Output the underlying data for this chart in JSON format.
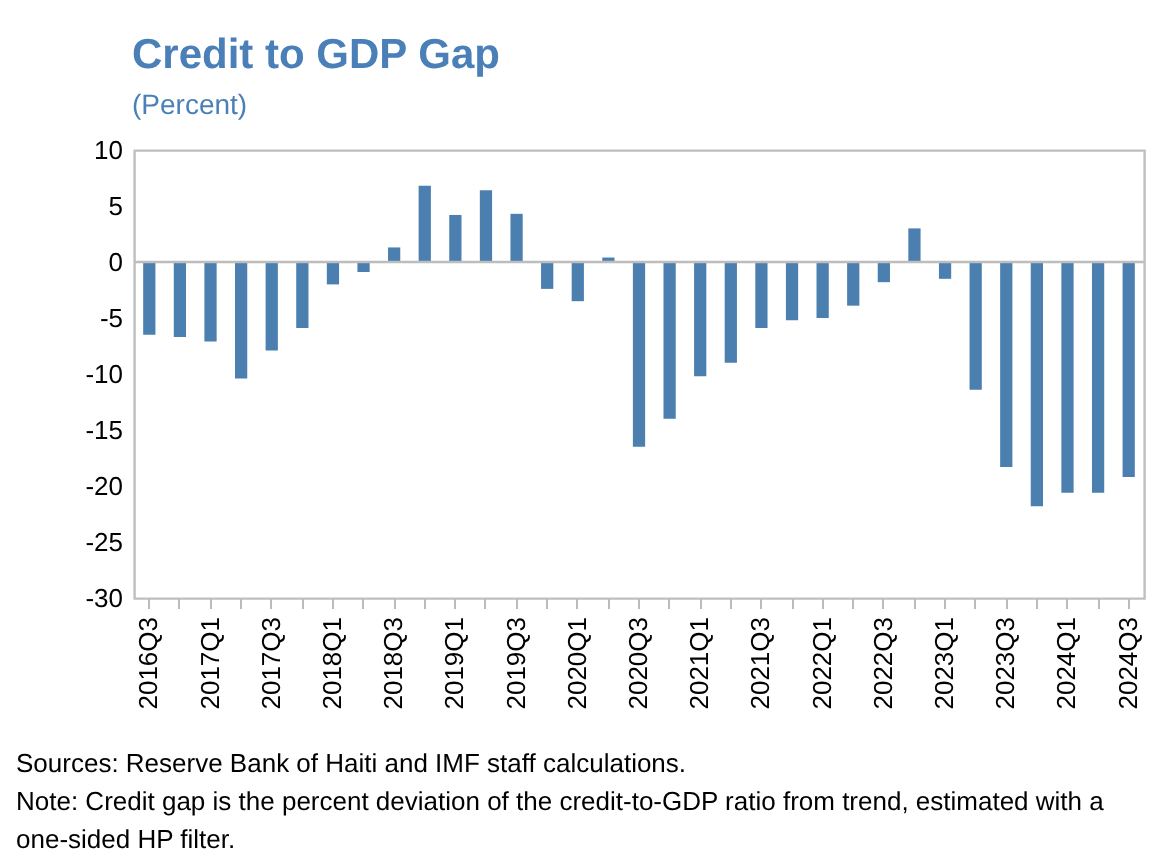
{
  "chart_data": {
    "type": "bar",
    "title": "Credit to GDP Gap",
    "subtitle": "(Percent)",
    "categories": [
      "2016Q3",
      null,
      "2017Q1",
      null,
      "2017Q3",
      null,
      "2018Q1",
      null,
      "2018Q3",
      null,
      "2019Q1",
      null,
      "2019Q3",
      null,
      "2020Q1",
      null,
      "2020Q3",
      null,
      "2021Q1",
      null,
      "2021Q3",
      null,
      "2022Q1",
      null,
      "2022Q3",
      null,
      "2023Q1",
      null,
      "2023Q3",
      null,
      "2024Q1",
      null,
      "2024Q3"
    ],
    "values": [
      -6.5,
      -6.7,
      -7.1,
      -10.4,
      -7.9,
      -5.9,
      -2.0,
      -0.9,
      1.3,
      6.8,
      4.2,
      6.4,
      4.3,
      -2.4,
      -3.5,
      0.4,
      -16.5,
      -14.0,
      -10.2,
      -9.0,
      -5.9,
      -5.2,
      -5.0,
      -3.9,
      -1.8,
      3.0,
      -1.5,
      -11.4,
      -18.3,
      -21.8,
      -20.6,
      -20.6,
      -19.2
    ],
    "color": "#4a7fb0",
    "ylim": [
      -30,
      10
    ],
    "yticks": [
      -30,
      -25,
      -20,
      -15,
      -10,
      -5,
      0,
      5,
      10
    ],
    "ref_lines": [
      {
        "axis": "y",
        "value": 0,
        "color": "#bdbdbd"
      }
    ],
    "annotations": [
      "Sources: Reserve Bank of Haiti and IMF staff calculations.",
      "Note: Credit gap is the percent deviation of the credit-to-GDP ratio from trend, estimated with a one-sided HP filter."
    ]
  }
}
